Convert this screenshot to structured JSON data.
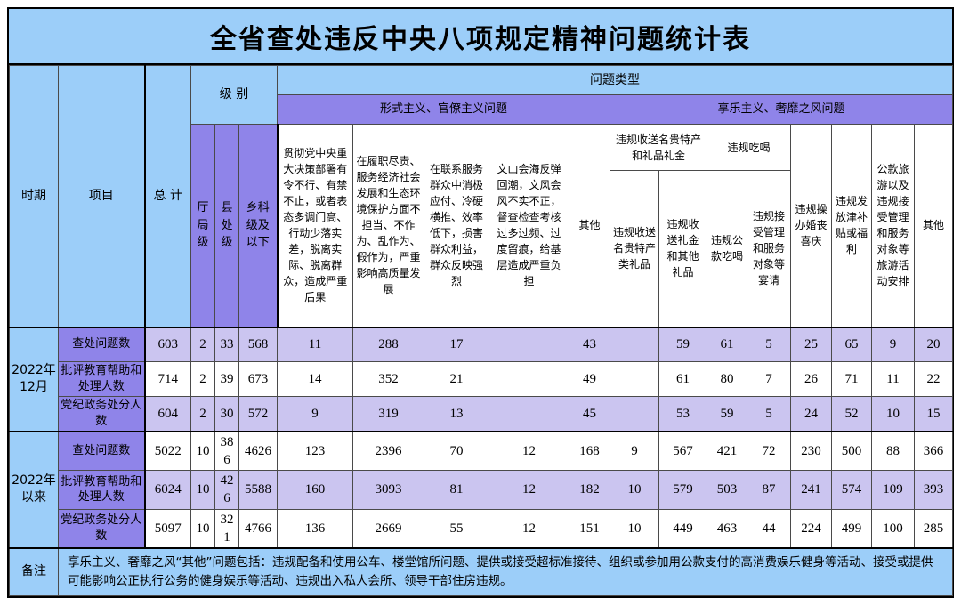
{
  "colors": {
    "blue": "#9CCEF9",
    "purple": "#8F84E9",
    "lavender": "#CBC5F0",
    "white": "#ffffff",
    "border": "#000000"
  },
  "title": "全省查处违反中央八项规定精神问题统计表",
  "header": {
    "period": "时期",
    "item": "项目",
    "total": "总 计",
    "level": "级 别",
    "problem_type": "问题类型",
    "level_cols": [
      "厅局级",
      "县处级",
      "乡科级及以下"
    ],
    "formalism_band": "形式主义、官僚主义问题",
    "hedonism_band": "享乐主义、奢靡之风问题",
    "formalism_cols": [
      "贯彻党中央重大决策部署有令不行、有禁不止，或者表态多调门高、行动少落实差，脱离实际、脱离群众，造成严重后果",
      "在履职尽责、服务经济社会发展和生态环境保护方面不担当、不作为、乱作为、假作为，严重影响高质量发展",
      "在联系服务群众中消极应付、冷硬横推、效率低下，损害群众利益，群众反映强烈",
      "文山会海反弹回潮，文风会风不实不正，督查检查考核过多过频、过度留痕，给基层造成严重负担",
      "其他"
    ],
    "gift_group": "违规收送名贵特产和礼品礼金",
    "gift_cols": [
      "违规收送名贵特产类礼品",
      "违规收送礼金和其他礼品"
    ],
    "dining_group": "违规吃喝",
    "dining_cols": [
      "违规公款吃喝",
      "违规接受管理和服务对象等宴请"
    ],
    "hedonism_cols": [
      "违规操办婚丧喜庆",
      "违规发放津补贴或福利",
      "公款旅游以及违规接受管理和服务对象等旅游活动安排",
      "其他"
    ]
  },
  "blocks": [
    {
      "period": "2022年12月",
      "rows": [
        {
          "label": "查处问题数",
          "values": [
            "603",
            "2",
            "33",
            "568",
            "11",
            "288",
            "17",
            "",
            "43",
            "",
            "59",
            "61",
            "5",
            "25",
            "65",
            "9",
            "20"
          ]
        },
        {
          "label": "批评教育帮助和处理人数",
          "values": [
            "714",
            "2",
            "39",
            "673",
            "14",
            "352",
            "21",
            "",
            "49",
            "",
            "61",
            "80",
            "7",
            "26",
            "71",
            "11",
            "22"
          ]
        },
        {
          "label": "党纪政务处分人数",
          "values": [
            "604",
            "2",
            "30",
            "572",
            "9",
            "319",
            "13",
            "",
            "45",
            "",
            "53",
            "59",
            "5",
            "24",
            "52",
            "10",
            "15"
          ]
        }
      ]
    },
    {
      "period": "2022年以来",
      "rows": [
        {
          "label": "查处问题数",
          "values": [
            "5022",
            "10",
            "386",
            "4626",
            "123",
            "2396",
            "70",
            "12",
            "168",
            "9",
            "567",
            "421",
            "72",
            "230",
            "500",
            "88",
            "366"
          ]
        },
        {
          "label": "批评教育帮助和处理人数",
          "values": [
            "6024",
            "10",
            "426",
            "5588",
            "160",
            "3093",
            "81",
            "12",
            "182",
            "10",
            "579",
            "503",
            "87",
            "241",
            "574",
            "109",
            "393"
          ]
        },
        {
          "label": "党纪政务处分人数",
          "values": [
            "5097",
            "10",
            "321",
            "4766",
            "136",
            "2669",
            "55",
            "12",
            "151",
            "10",
            "449",
            "463",
            "44",
            "224",
            "499",
            "100",
            "285"
          ]
        }
      ]
    }
  ],
  "remark": {
    "label": "备注",
    "text": "享乐主义、奢靡之风“其他”问题包括：违规配备和使用公车、楼堂馆所问题、提供或接受超标准接待、组织或参加用公款支付的高消费娱乐健身等活动、接受或提供可能影响公正执行公务的健身娱乐等活动、违规出入私人会所、领导干部住房违规。"
  }
}
